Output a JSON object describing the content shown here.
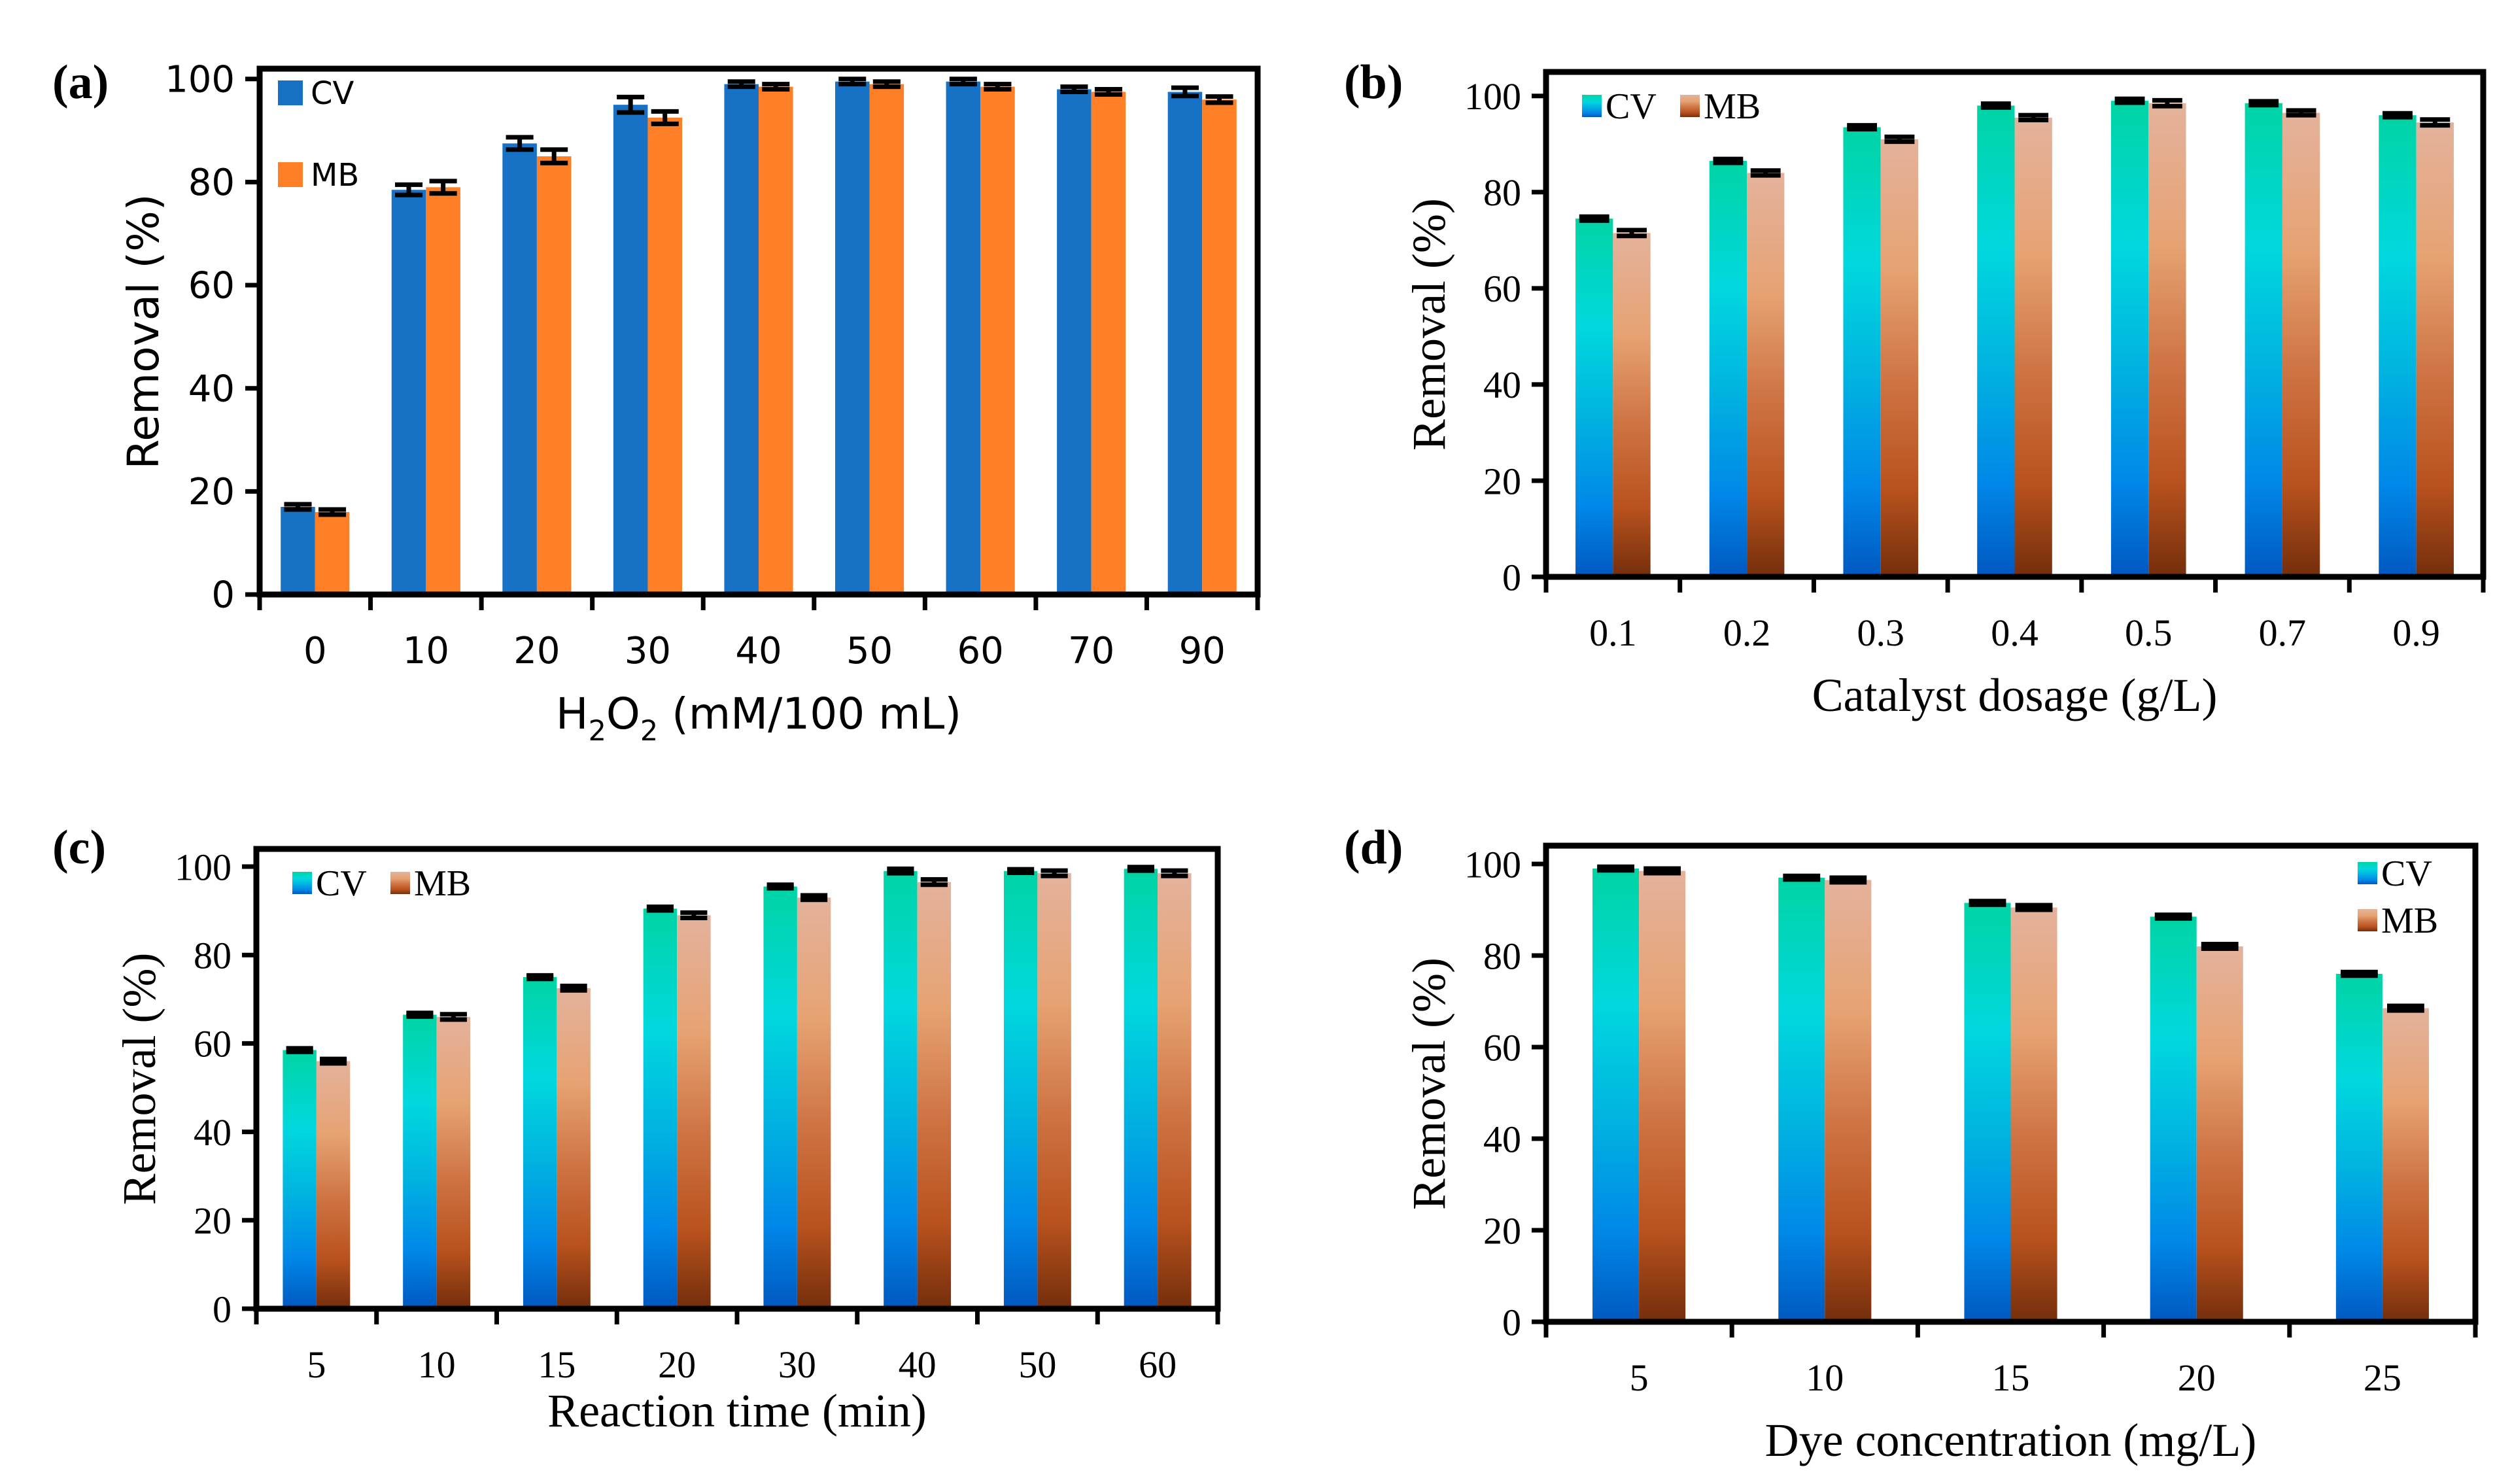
{
  "chart_data": [
    {
      "type": "bar",
      "panel_label": "(a)",
      "xlabel": "H2O2 (mM/100 mL)",
      "xlabel_parts": [
        "H",
        "2",
        "O",
        "2",
        " (mM/100 mL)"
      ],
      "ylabel": "Removal (%)",
      "ylim": [
        0,
        102
      ],
      "yticks": [
        "0",
        "20",
        "40",
        "60",
        "80",
        "100"
      ],
      "legend_position": "top-left-stacked",
      "categories": [
        "0",
        "10",
        "20",
        "30",
        "40",
        "50",
        "60",
        "70",
        "90"
      ],
      "series": [
        {
          "name": "CV",
          "color": "#1772c6",
          "values": [
            17,
            78.5,
            87.5,
            95,
            99,
            99.5,
            99.5,
            98,
            97.5
          ],
          "errors": [
            0.5,
            1,
            1.2,
            1.5,
            0.5,
            0.5,
            0.5,
            0.5,
            0.8
          ]
        },
        {
          "name": "MB",
          "color": "#ff7f27",
          "values": [
            16,
            79,
            85,
            92.5,
            98.5,
            99,
            98.5,
            97.5,
            96
          ],
          "errors": [
            0.5,
            1.2,
            1.3,
            1.2,
            0.5,
            0.5,
            0.5,
            0.5,
            0.6
          ]
        }
      ]
    },
    {
      "type": "bar",
      "panel_label": "(b)",
      "xlabel": "Catalyst dosage (g/L)",
      "ylabel": "Removal (%)",
      "ylim": [
        0,
        105
      ],
      "yticks": [
        "0",
        "20",
        "40",
        "60",
        "80",
        "100"
      ],
      "legend_position": "top-left-inline",
      "categories": [
        "0.1",
        "0.2",
        "0.3",
        "0.4",
        "0.5",
        "0.7",
        "0.9"
      ],
      "series": [
        {
          "name": "CV",
          "gradient": "cv",
          "values": [
            74.5,
            86.5,
            93.5,
            98,
            99,
            98.5,
            96
          ],
          "errors": [
            0.4,
            0.4,
            0.4,
            0.4,
            0.4,
            0.4,
            0.4
          ]
        },
        {
          "name": "MB",
          "gradient": "mb",
          "values": [
            71.5,
            84,
            91,
            95.5,
            98.5,
            96.5,
            94.5
          ],
          "errors": [
            0.6,
            0.5,
            0.5,
            0.5,
            0.6,
            0.5,
            0.6
          ]
        }
      ]
    },
    {
      "type": "bar",
      "panel_label": "(c)",
      "xlabel": "Reaction time (min)",
      "ylabel": "Removal (%)",
      "ylim": [
        0,
        104
      ],
      "yticks": [
        "0",
        "20",
        "40",
        "60",
        "80",
        "100"
      ],
      "legend_position": "top-left-inline",
      "categories": [
        "5",
        "10",
        "15",
        "20",
        "30",
        "40",
        "50",
        "60"
      ],
      "series": [
        {
          "name": "CV",
          "gradient": "cv",
          "values": [
            58.5,
            66.5,
            75,
            90.5,
            95.5,
            99,
            99,
            99.5
          ],
          "errors": [
            0.4,
            0.4,
            0.4,
            0.4,
            0.4,
            0.5,
            0.4,
            0.4
          ]
        },
        {
          "name": "MB",
          "gradient": "mb",
          "values": [
            56,
            66,
            72.5,
            89,
            93,
            96.5,
            98.5,
            98.5
          ],
          "errors": [
            0.5,
            0.6,
            0.5,
            0.6,
            0.5,
            0.6,
            0.6,
            0.6
          ]
        }
      ]
    },
    {
      "type": "bar",
      "panel_label": "(d)",
      "xlabel": "Dye concentration (mg/L)",
      "ylabel": "Removal (%)",
      "ylim": [
        0,
        104
      ],
      "yticks": [
        "0",
        "20",
        "40",
        "60",
        "80",
        "100"
      ],
      "legend_position": "top-right-stacked",
      "categories": [
        "5",
        "10",
        "15",
        "20",
        "25"
      ],
      "series": [
        {
          "name": "CV",
          "gradient": "cv",
          "values": [
            99,
            97,
            91.5,
            88.5,
            76
          ],
          "errors": [
            0.4,
            0.4,
            0.4,
            0.4,
            0.4
          ]
        },
        {
          "name": "MB",
          "gradient": "mb",
          "values": [
            98.5,
            96.5,
            90.5,
            82,
            68.5
          ],
          "errors": [
            0.5,
            0.5,
            0.5,
            0.5,
            0.5
          ]
        }
      ]
    }
  ]
}
